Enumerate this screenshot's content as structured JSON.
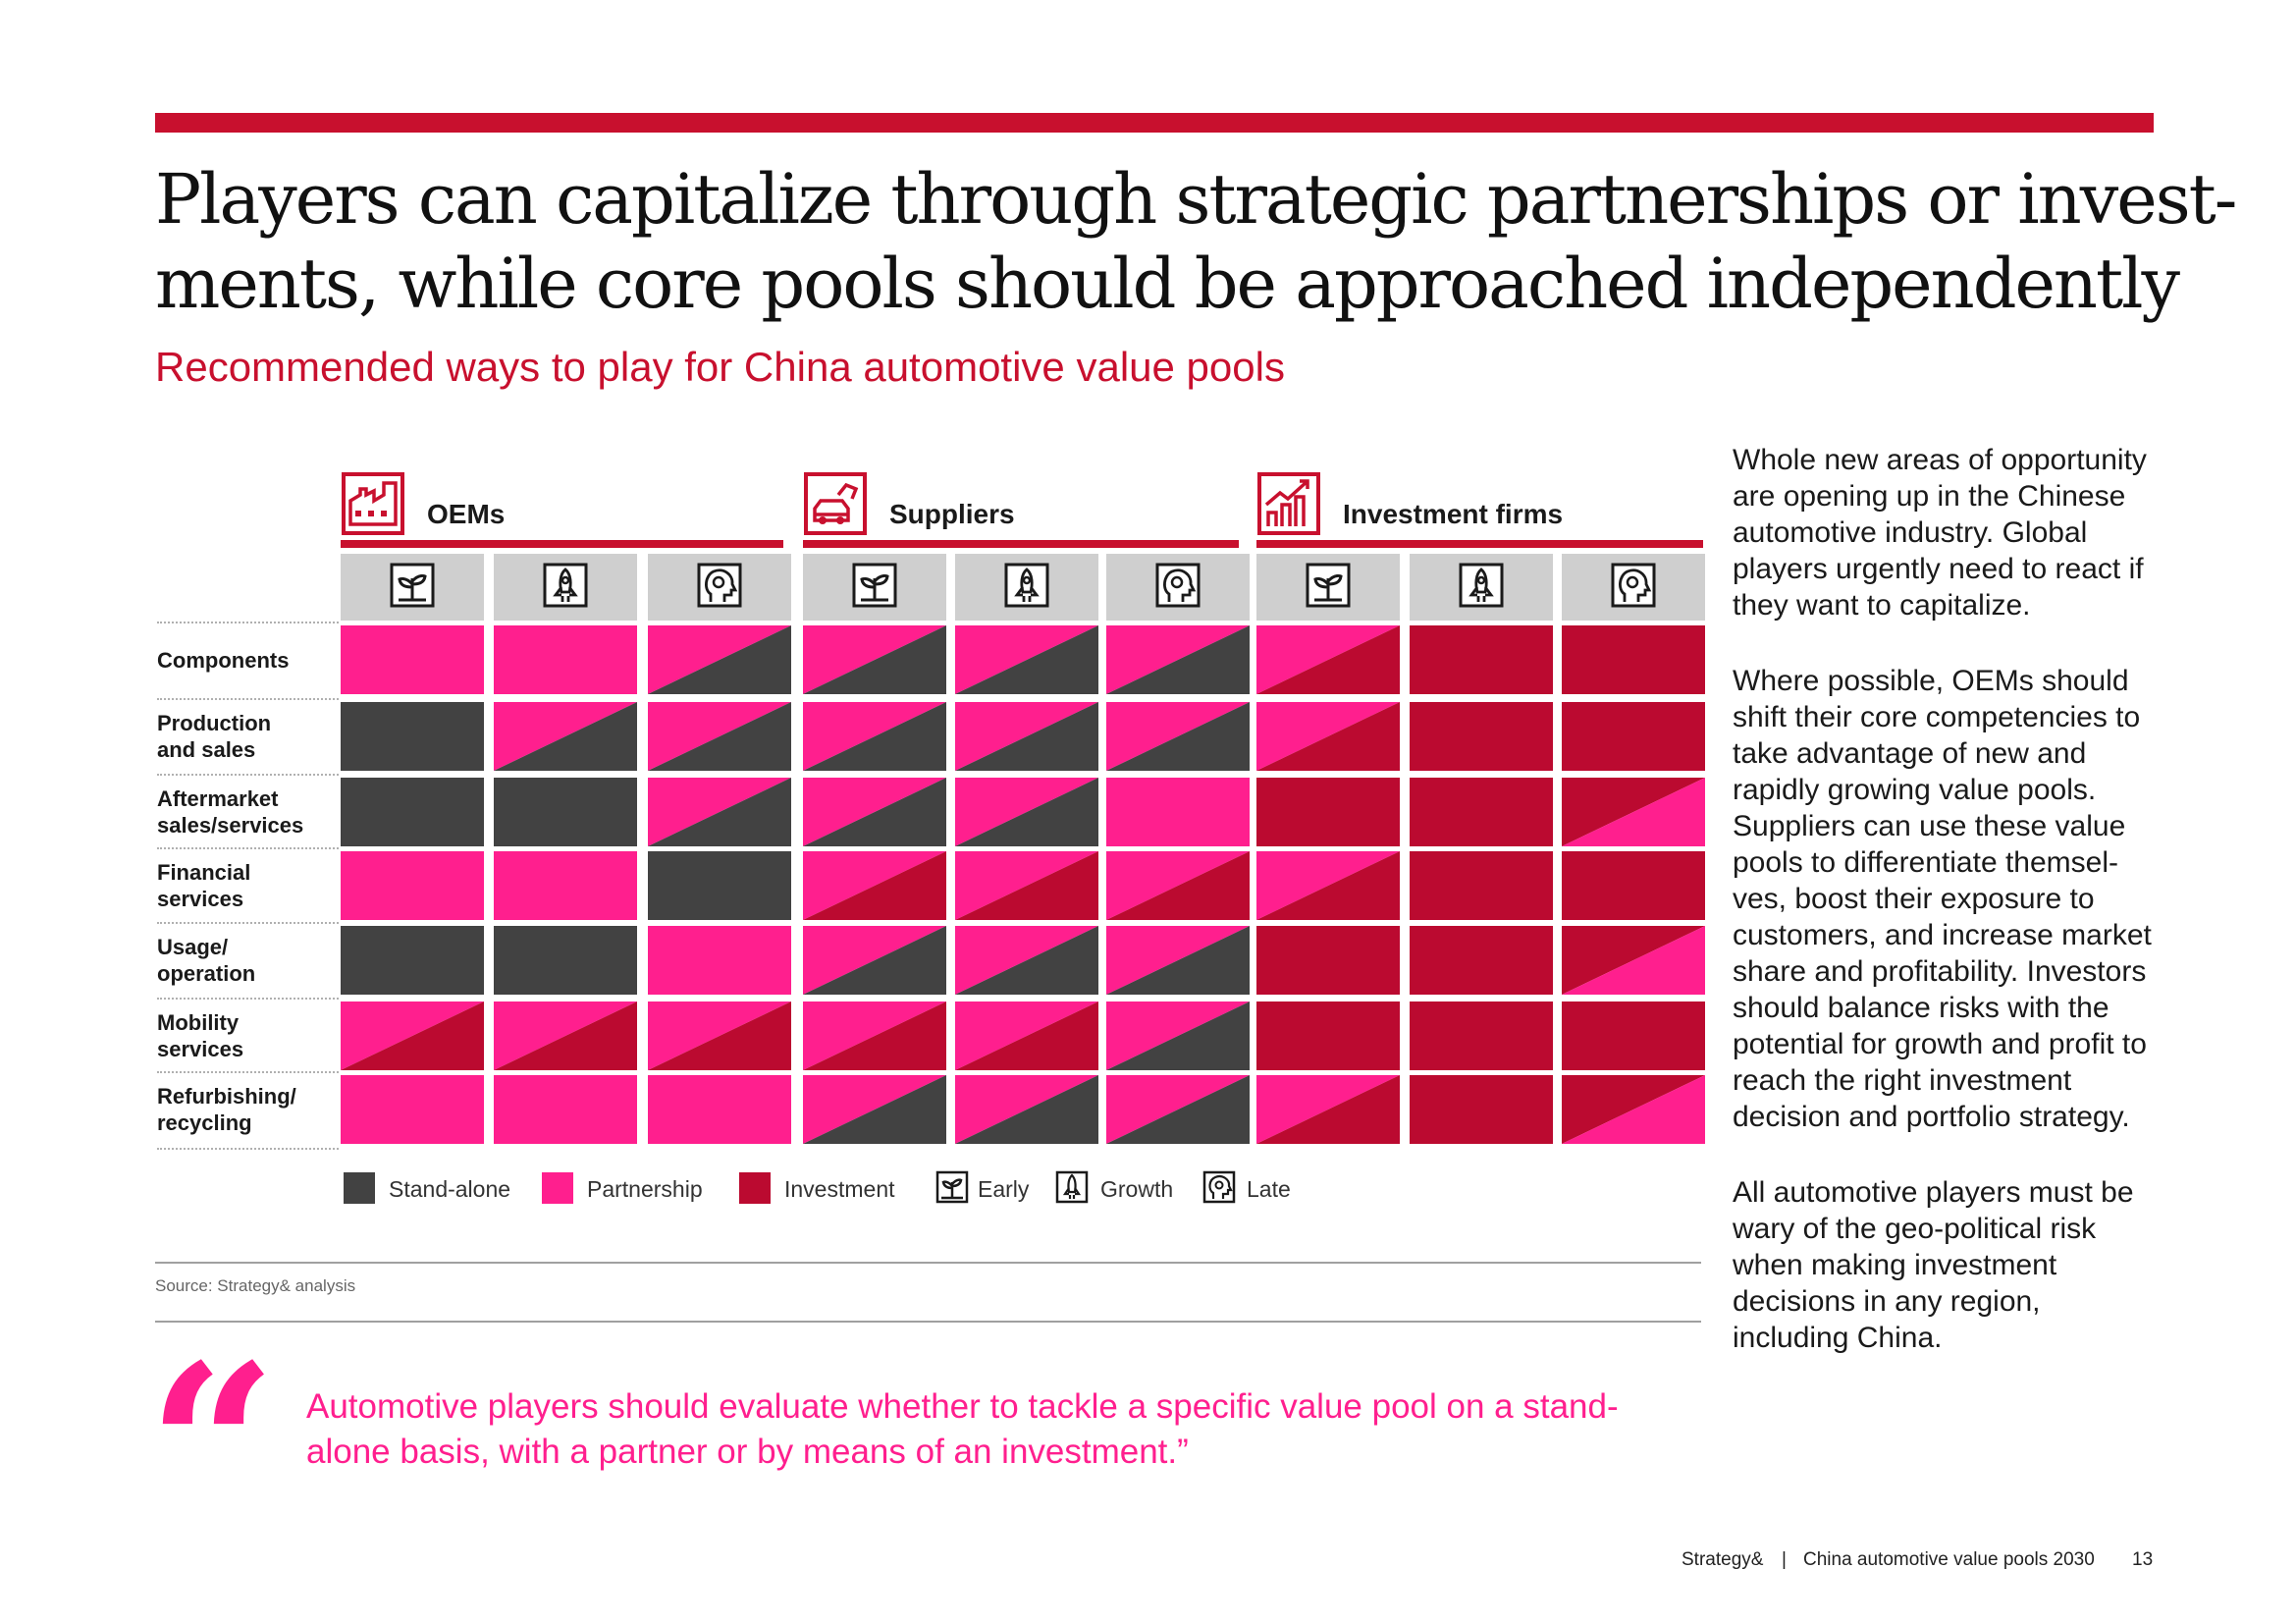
{
  "header": {
    "title_line1": "Players can capitalize through strategic partnerships or invest-",
    "title_line2": "ments, while core pools should be approached independently",
    "subtitle": "Recommended ways to play for China automotive value pools"
  },
  "colors": {
    "standalone": "#424242",
    "partnership": "#ff1f8e",
    "investment": "#bb0a30",
    "accent_red": "#c8102e",
    "stage_bg": "#cfcfcf"
  },
  "groups": [
    {
      "label": "OEMs",
      "icon": "factory-icon"
    },
    {
      "label": "Suppliers",
      "icon": "car-parts-icon"
    },
    {
      "label": "Investment firms",
      "icon": "growth-chart-icon"
    }
  ],
  "stages": [
    "Early",
    "Growth",
    "Late"
  ],
  "stage_icons": [
    "seedling-icon",
    "rocket-icon",
    "head-gear-icon"
  ],
  "chart_data": {
    "type": "table",
    "title": "Recommended ways to play for China automotive value pools",
    "columns": [
      "OEMs - Early",
      "OEMs - Growth",
      "OEMs - Late",
      "Suppliers - Early",
      "Suppliers - Growth",
      "Suppliers - Late",
      "Investment firms - Early",
      "Investment firms - Growth",
      "Investment firms - Late"
    ],
    "rows": [
      {
        "label": "Components",
        "cells": [
          "P",
          "P",
          "P/S",
          "P/S",
          "P/S",
          "P/S",
          "P/I",
          "I",
          "I"
        ]
      },
      {
        "label": "Production and sales",
        "cells": [
          "S",
          "P/S",
          "P/S",
          "P/S",
          "P/S",
          "P/S",
          "P/I",
          "I",
          "I"
        ]
      },
      {
        "label": "Aftermarket sales/services",
        "cells": [
          "S",
          "S",
          "P/S",
          "P/S",
          "P/S",
          "P",
          "I",
          "I",
          "I/P"
        ]
      },
      {
        "label": "Financial services",
        "cells": [
          "P",
          "P",
          "S",
          "P/I",
          "P/I",
          "P/I",
          "P/I",
          "I",
          "I"
        ]
      },
      {
        "label": "Usage/ operation",
        "cells": [
          "S",
          "S",
          "P",
          "P/S",
          "P/S",
          "P/S",
          "I",
          "I",
          "I/P"
        ]
      },
      {
        "label": "Mobility services",
        "cells": [
          "P/I",
          "P/I",
          "P/I",
          "P/I",
          "P/I",
          "P/S",
          "I",
          "I",
          "I"
        ]
      },
      {
        "label": "Refurbishing/ recycling",
        "cells": [
          "P",
          "P",
          "P",
          "P/S",
          "P/S",
          "P/S",
          "P/I",
          "I",
          "I/P"
        ]
      }
    ],
    "code_meaning": {
      "S": "Stand-alone",
      "P": "Partnership",
      "I": "Investment"
    },
    "split_note": "Two codes = cell split diagonally; first code upper-left, second code lower-right"
  },
  "rows": [
    {
      "line1": "Components",
      "line2": ""
    },
    {
      "line1": "Production",
      "line2": "and sales"
    },
    {
      "line1": "Aftermarket",
      "line2": "sales/services"
    },
    {
      "line1": "Financial",
      "line2": "services"
    },
    {
      "line1": "Usage/",
      "line2": "operation"
    },
    {
      "line1": "Mobility",
      "line2": "services"
    },
    {
      "line1": "Refurbishing/",
      "line2": "recycling"
    }
  ],
  "legend": {
    "standalone": "Stand-alone",
    "partnership": "Partnership",
    "investment": "Investment",
    "early": "Early",
    "growth": "Growth",
    "late": "Late"
  },
  "source": "Source: Strategy& analysis",
  "quote": {
    "mark": "“",
    "text": "Automotive players should evaluate whether to tackle a specific value pool on a stand-alone basis, with a partner or by means of an investment.”"
  },
  "sidebar": {
    "p1": "Whole new areas of opportunity are opening up in the Chinese automotive industry. Global players urgently need to react if they want to capitalize.",
    "p2": "Where possible, OEMs should shift their core competencies to take advantage of new and rapidly growing value pools. Suppliers can use these value pools to differentiate themsel-ves, boost their exposure to customers, and increase market share and profitability. Investors should balance risks with the potential for growth and profit to reach the right investment decision and portfolio strategy.",
    "p3": "All automotive players must be wary of the geo-political risk when making investment decisions in any region, including China."
  },
  "footer": {
    "brand": "Strategy&",
    "separator": "|",
    "publication": "China automotive value pools 2030",
    "page": "13"
  }
}
